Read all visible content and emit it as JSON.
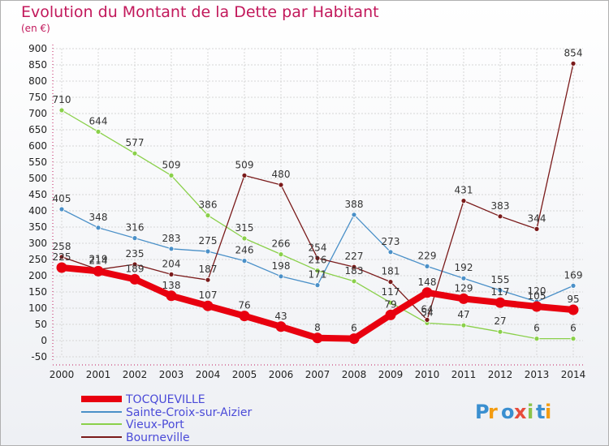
{
  "title": "Evolution du Montant de la Dette par Habitant",
  "subtitle": "(en €)",
  "logo": "Proxiti",
  "chart_data": {
    "type": "line",
    "title": "Evolution du Montant de la Dette par Habitant",
    "subtitle": "(en €)",
    "x": [
      "2000",
      "2001",
      "2002",
      "2003",
      "2004",
      "2005",
      "2006",
      "2007",
      "2008",
      "2009",
      "2010",
      "2011",
      "2012",
      "2013",
      "2014"
    ],
    "ylim": [
      -50,
      900
    ],
    "yticks": [
      -50,
      0,
      50,
      100,
      150,
      200,
      250,
      300,
      350,
      400,
      450,
      500,
      550,
      600,
      650,
      700,
      750,
      800,
      850,
      900
    ],
    "grid": true,
    "legend_placement": "bottom-left",
    "series": [
      {
        "name": "TOCQUEVILLE",
        "color": "#e8000f",
        "values": [
          225,
          214,
          189,
          138,
          107,
          76,
          43,
          8,
          6,
          79,
          148,
          129,
          117,
          105,
          95
        ]
      },
      {
        "name": "Sainte-Croix-sur-Aizier",
        "color": "#4a90c8",
        "values": [
          405,
          348,
          316,
          283,
          275,
          246,
          198,
          171,
          388,
          273,
          229,
          192,
          155,
          120,
          169
        ]
      },
      {
        "name": "Vieux-Port",
        "color": "#8ad04a",
        "values": [
          710,
          644,
          577,
          509,
          386,
          315,
          266,
          216,
          183,
          117,
          54,
          47,
          27,
          6,
          6
        ]
      },
      {
        "name": "Bourneville",
        "color": "#7a1a1a",
        "values": [
          258,
          219,
          235,
          204,
          187,
          509,
          480,
          254,
          227,
          181,
          64,
          431,
          383,
          344,
          854
        ]
      }
    ]
  }
}
